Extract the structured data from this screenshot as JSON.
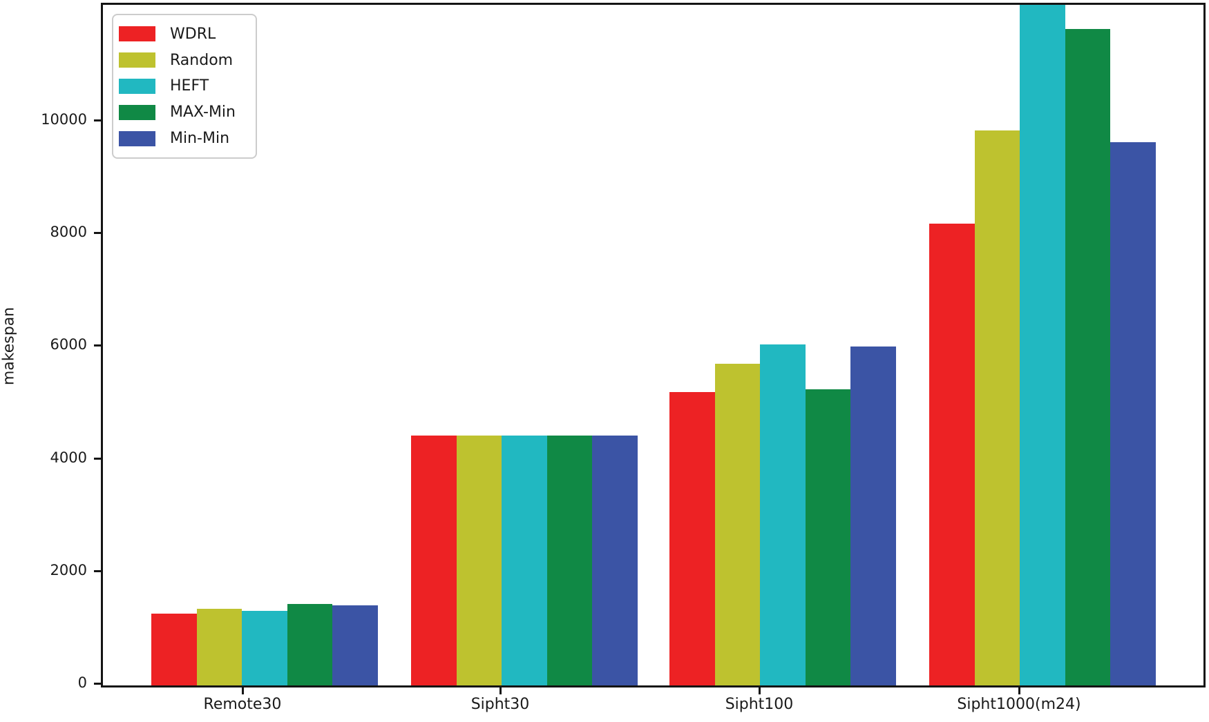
{
  "chart_data": {
    "type": "bar",
    "title": "",
    "xlabel": "",
    "ylabel": "makespan",
    "categories": [
      "Remote30",
      "Sipht30",
      "Sipht100",
      "Sipht1000(m24)"
    ],
    "series": [
      {
        "name": "WDRL",
        "color": "#ed2224",
        "values": [
          1270,
          4440,
          5210,
          8205
        ]
      },
      {
        "name": "Random",
        "color": "#bec22f",
        "values": [
          1360,
          4440,
          5715,
          9855
        ]
      },
      {
        "name": "HEFT",
        "color": "#21b8c1",
        "values": [
          1330,
          4440,
          6050,
          12200
        ]
      },
      {
        "name": "MAX-Min",
        "color": "#108945",
        "values": [
          1450,
          4440,
          5255,
          11655
        ]
      },
      {
        "name": "Min-Min",
        "color": "#3b54a5",
        "values": [
          1420,
          4440,
          6015,
          9645
        ]
      }
    ],
    "yticks": [
      0,
      2000,
      4000,
      6000,
      8000,
      10000
    ],
    "ylim": [
      0,
      12085
    ],
    "grid": false,
    "legend": {
      "position": "upper-left",
      "entries": [
        "WDRL",
        "Random",
        "HEFT",
        "MAX-Min",
        "Min-Min"
      ]
    }
  }
}
